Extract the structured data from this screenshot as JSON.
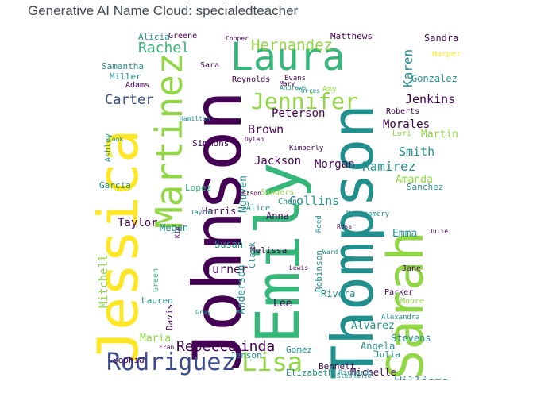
{
  "title": "Generative AI Name Cloud: specialedteacher",
  "palette": {
    "dark_purple": "#440154",
    "indigo": "#3b4a8c",
    "blue": "#2f6c8e",
    "teal": "#21908c",
    "green": "#35b779",
    "lime": "#90d743",
    "yellow": "#fde725"
  },
  "words": [
    "Johnson",
    "Emily",
    "Thompson",
    "Jessica",
    "Sarah",
    "Laura",
    "Martinez",
    "Jennifer",
    "Rodriguez",
    "Lisa",
    "Hernandez",
    "Rachel",
    "Carter",
    "Rebecca",
    "Linda",
    "Karen",
    "Jenkins",
    "Gonzalez",
    "Brown",
    "Peterson",
    "Morales",
    "Martin",
    "Smith",
    "Ramirez",
    "Jackson",
    "Morgan",
    "Amanda",
    "Sanchez",
    "Collins",
    "Garcia",
    "Lopez",
    "Harris",
    "Nguyen",
    "Taylor",
    "Megan",
    "Mitchell",
    "Anna",
    "Emma",
    "Turner",
    "Robinson",
    "Susan",
    "Melissa",
    "Clark",
    "Anderson",
    "Lauren",
    "Maria",
    "Davis",
    "Lee",
    "Rivera",
    "Alvarez",
    "Angela",
    "Stevens",
    "Julia",
    "Williams",
    "Michelle",
    "Bennett",
    "Elizabeth",
    "Gomez",
    "Jenson",
    "Sophia",
    "Matthews",
    "Sandra",
    "Harper",
    "Alicia",
    "Greene",
    "Samantha",
    "Miller",
    "Adams",
    "Sara",
    "Reynolds",
    "Amy",
    "Roberts",
    "Simmons",
    "Chen",
    "Sanders",
    "Green",
    "Parker",
    "Moore",
    "Jane",
    "Ashley",
    "Lori",
    "Kimberly",
    "Montgomery",
    "Reed",
    "Alice",
    "Hamilton",
    "Cooper",
    "Evans",
    "Mary",
    "Torres",
    "Andrews",
    "Richards",
    "Henderson",
    "Alexandra",
    "Julie",
    "Stephanie",
    "Cook",
    "Dylan",
    "Taylor",
    "Nelson",
    "Fran",
    "Ross",
    "Kim",
    "Lewis",
    "Ward",
    "Gray"
  ]
}
